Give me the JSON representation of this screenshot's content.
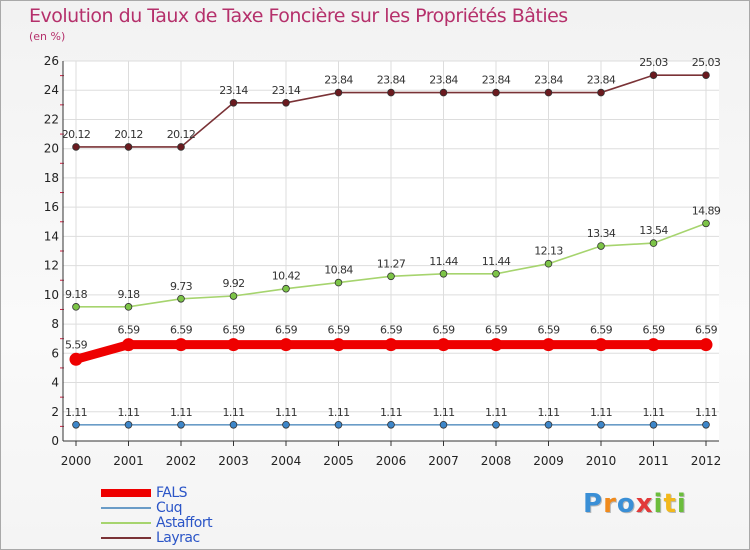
{
  "title": "Evolution du Taux de Taxe Foncière sur les Propriétés Bâties",
  "unit_label": "(en %)",
  "logo": {
    "text": "Proxiti",
    "letters": [
      {
        "ch": "P",
        "color": "#3a8fd6"
      },
      {
        "ch": "r",
        "color": "#f08a1c"
      },
      {
        "ch": "o",
        "color": "#3a8fd6"
      },
      {
        "ch": "x",
        "color": "#e23a3a"
      },
      {
        "ch": "i",
        "color": "#6bbd3c"
      },
      {
        "ch": "t",
        "color": "#f2b81c"
      },
      {
        "ch": "i",
        "color": "#6bbd3c"
      }
    ]
  },
  "chart_data": {
    "type": "line",
    "title": "Evolution du Taux de Taxe Foncière sur les Propriétés Bâties",
    "ylabel": "(en %)",
    "xlabel": "",
    "x": [
      "2000",
      "2001",
      "2002",
      "2003",
      "2004",
      "2005",
      "2006",
      "2007",
      "2008",
      "2009",
      "2010",
      "2011",
      "2012"
    ],
    "ylim": [
      0,
      26
    ],
    "yticks": [
      "0",
      "2",
      "4",
      "6",
      "8",
      "10",
      "12",
      "14",
      "16",
      "18",
      "20",
      "22",
      "24",
      "26"
    ],
    "grid": true,
    "legend_position": "bottom-left",
    "series": [
      {
        "name": "FALS",
        "color": "#ee0000",
        "emphasis": true,
        "values": [
          5.59,
          6.59,
          6.59,
          6.59,
          6.59,
          6.59,
          6.59,
          6.59,
          6.59,
          6.59,
          6.59,
          6.59,
          6.59
        ],
        "labels": [
          "5.59",
          "6.59",
          "6.59",
          "6.59",
          "6.59",
          "6.59",
          "6.59",
          "6.59",
          "6.59",
          "6.59",
          "6.59",
          "6.59",
          "6.59"
        ]
      },
      {
        "name": "Cuq",
        "color": "#6a9cc7",
        "marker": "#3d86c9",
        "values": [
          1.11,
          1.11,
          1.11,
          1.11,
          1.11,
          1.11,
          1.11,
          1.11,
          1.11,
          1.11,
          1.11,
          1.11,
          1.11
        ],
        "labels": [
          "1.11",
          "1.11",
          "1.11",
          "1.11",
          "1.11",
          "1.11",
          "1.11",
          "1.11",
          "1.11",
          "1.11",
          "1.11",
          "1.11",
          "1.11"
        ]
      },
      {
        "name": "Astaffort",
        "color": "#a6d46e",
        "marker": "#7cc447",
        "values": [
          9.18,
          9.18,
          9.73,
          9.92,
          10.42,
          10.84,
          11.27,
          11.44,
          11.44,
          12.13,
          13.34,
          13.54,
          14.89
        ],
        "labels": [
          "9.18",
          "9.18",
          "9.73",
          "9.92",
          "10.42",
          "10.84",
          "11.27",
          "11.44",
          "11.44",
          "12.13",
          "13.34",
          "13.54",
          "14.89"
        ]
      },
      {
        "name": "Layrac",
        "color": "#7a3236",
        "marker": "#6b1a1f",
        "values": [
          20.12,
          20.12,
          20.12,
          23.14,
          23.14,
          23.84,
          23.84,
          23.84,
          23.84,
          23.84,
          23.84,
          25.03,
          25.03
        ],
        "labels": [
          "20.12",
          "20.12",
          "20.12",
          "23.14",
          "23.14",
          "23.84",
          "23.84",
          "23.84",
          "23.84",
          "23.84",
          "23.84",
          "25.03",
          "25.03"
        ]
      }
    ]
  }
}
